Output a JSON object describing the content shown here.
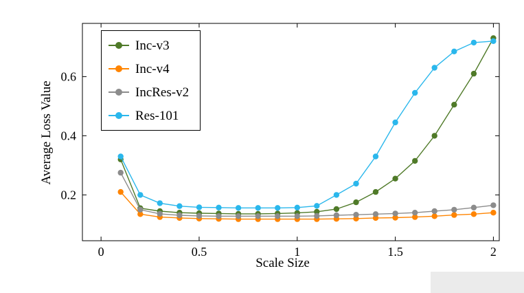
{
  "chart_data": {
    "type": "line",
    "title": "",
    "xlabel": "Scale Size",
    "ylabel": "Average Loss Value",
    "x": [
      0.1,
      0.2,
      0.3,
      0.4,
      0.5,
      0.6,
      0.7,
      0.8,
      0.9,
      1.0,
      1.1,
      1.2,
      1.3,
      1.4,
      1.5,
      1.6,
      1.7,
      1.8,
      1.9,
      2.0
    ],
    "series": [
      {
        "name": "Inc-v3",
        "color": "#4f7a28",
        "values": [
          0.32,
          0.155,
          0.145,
          0.14,
          0.138,
          0.137,
          0.136,
          0.136,
          0.137,
          0.139,
          0.143,
          0.152,
          0.175,
          0.21,
          0.255,
          0.315,
          0.4,
          0.505,
          0.61,
          0.73
        ]
      },
      {
        "name": "Inc-v4",
        "color": "#ff8400",
        "values": [
          0.21,
          0.135,
          0.125,
          0.122,
          0.12,
          0.119,
          0.118,
          0.118,
          0.118,
          0.118,
          0.118,
          0.119,
          0.12,
          0.122,
          0.123,
          0.125,
          0.128,
          0.132,
          0.135,
          0.14
        ]
      },
      {
        "name": "IncRes-v2",
        "color": "#8c8c8c",
        "values": [
          0.275,
          0.15,
          0.136,
          0.131,
          0.129,
          0.128,
          0.128,
          0.128,
          0.128,
          0.128,
          0.129,
          0.131,
          0.133,
          0.135,
          0.137,
          0.14,
          0.145,
          0.15,
          0.157,
          0.165
        ]
      },
      {
        "name": "Res-101",
        "color": "#2ab7ec",
        "values": [
          0.33,
          0.2,
          0.172,
          0.162,
          0.158,
          0.157,
          0.156,
          0.156,
          0.156,
          0.157,
          0.163,
          0.2,
          0.238,
          0.33,
          0.445,
          0.545,
          0.63,
          0.685,
          0.715,
          0.72
        ]
      }
    ],
    "xlim": [
      -0.095,
      2.03
    ],
    "ylim": [
      0.045,
      0.78
    ],
    "xticks": [
      0,
      0.5,
      1,
      1.5,
      2
    ],
    "xtick_labels": [
      "0",
      "0.5",
      "1",
      "1.5",
      "2"
    ],
    "yticks": [
      0.2,
      0.4,
      0.6
    ],
    "ytick_labels": [
      "0.2",
      "0.4",
      "0.6"
    ],
    "grid": false,
    "legend_position": "top-left",
    "marker": "circle"
  }
}
